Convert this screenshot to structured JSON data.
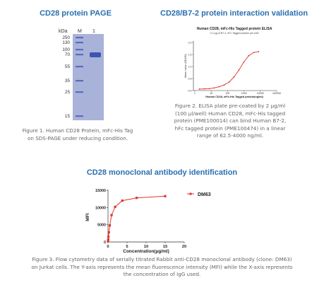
{
  "panel1": {
    "title": "CD28 protein PAGE",
    "gel": {
      "header": [
        "kDa",
        "M",
        "1"
      ],
      "markers": [
        "250",
        "130",
        "100",
        "70",
        "55",
        "35",
        "25",
        "15"
      ],
      "colors": {
        "gel": "#a9b3d9",
        "band": "#3c55b0",
        "marker": "#5a6cc0"
      }
    },
    "caption_lines": [
      "Figure 1. Human CD28 Protein, mFc-His Tag",
      "on SDS-PAGE under reducing condition."
    ]
  },
  "panel2": {
    "title": "CD28/B7-2 protein interaction validation",
    "chart_data": {
      "type": "line",
      "title": "Human CD28, mFc-His Tagged protein ELISA",
      "subtitle": "0.2 µg of B7-2, hFc Tagged protein per well",
      "xlabel": "Human CD28, mFc-His Tagged protein(ng/ml)",
      "ylabel": "Mean value (OD450)",
      "xscale": "log",
      "xlim": [
        1,
        100000
      ],
      "ylim": [
        0,
        2.0
      ],
      "xticks": [
        "1",
        "10",
        "100",
        "1000",
        "10000",
        "100000"
      ],
      "yticks": [
        "0.0",
        "0.5",
        "1.0",
        "1.5",
        "2.0"
      ],
      "color": "#e0352b",
      "series": [
        {
          "x": [
            1.9,
            3.9,
            7.6,
            15.3,
            30.5,
            61,
            122,
            244,
            488,
            977,
            1953,
            3906,
            7813
          ],
          "y": [
            0.06,
            0.07,
            0.08,
            0.11,
            0.16,
            0.23,
            0.35,
            0.56,
            0.85,
            1.18,
            1.45,
            1.58,
            1.62
          ]
        }
      ]
    },
    "caption_lines": [
      "Figure 2. ELISA plate pre-coated by 2 µg/ml",
      "(100 µl/well) Human CD28, mFc-His tagged",
      "protein (PME100014) can bind Human B7-2,",
      "hFc tagged protein (PME100474) in a linear",
      "range of 62.5-4000 ng/ml."
    ]
  },
  "panel3": {
    "title": "CD28 monoclonal antibody identification",
    "chart_data": {
      "type": "line",
      "xlabel": "Concentration(µg/ml)",
      "ylabel": "MFI",
      "xlim": [
        0,
        20
      ],
      "ylim": [
        0,
        15000
      ],
      "xticks": [
        "0",
        "5",
        "10",
        "15",
        "20"
      ],
      "yticks": [
        "0",
        "5000",
        "10000",
        "15000"
      ],
      "legend_position": "right",
      "color": "#e0352b",
      "series": [
        {
          "name": "DM63",
          "x": [
            0.03,
            0.06,
            0.12,
            0.23,
            0.47,
            0.94,
            1.88,
            3.75,
            7.5,
            15
          ],
          "y": [
            300,
            700,
            1500,
            2800,
            4800,
            7800,
            10200,
            12000,
            12800,
            13300
          ]
        }
      ]
    },
    "caption_lines": [
      "Figure 3. Flow cytometry data of serially titrated Rabbit anti-CD28 monoclonal antibody (clone: DM63)",
      "on Jurkat cells. The Y-axis represents the mean fluorescence intensity (MFI) while the X-axis represents",
      "the concentration of IgG used."
    ]
  }
}
